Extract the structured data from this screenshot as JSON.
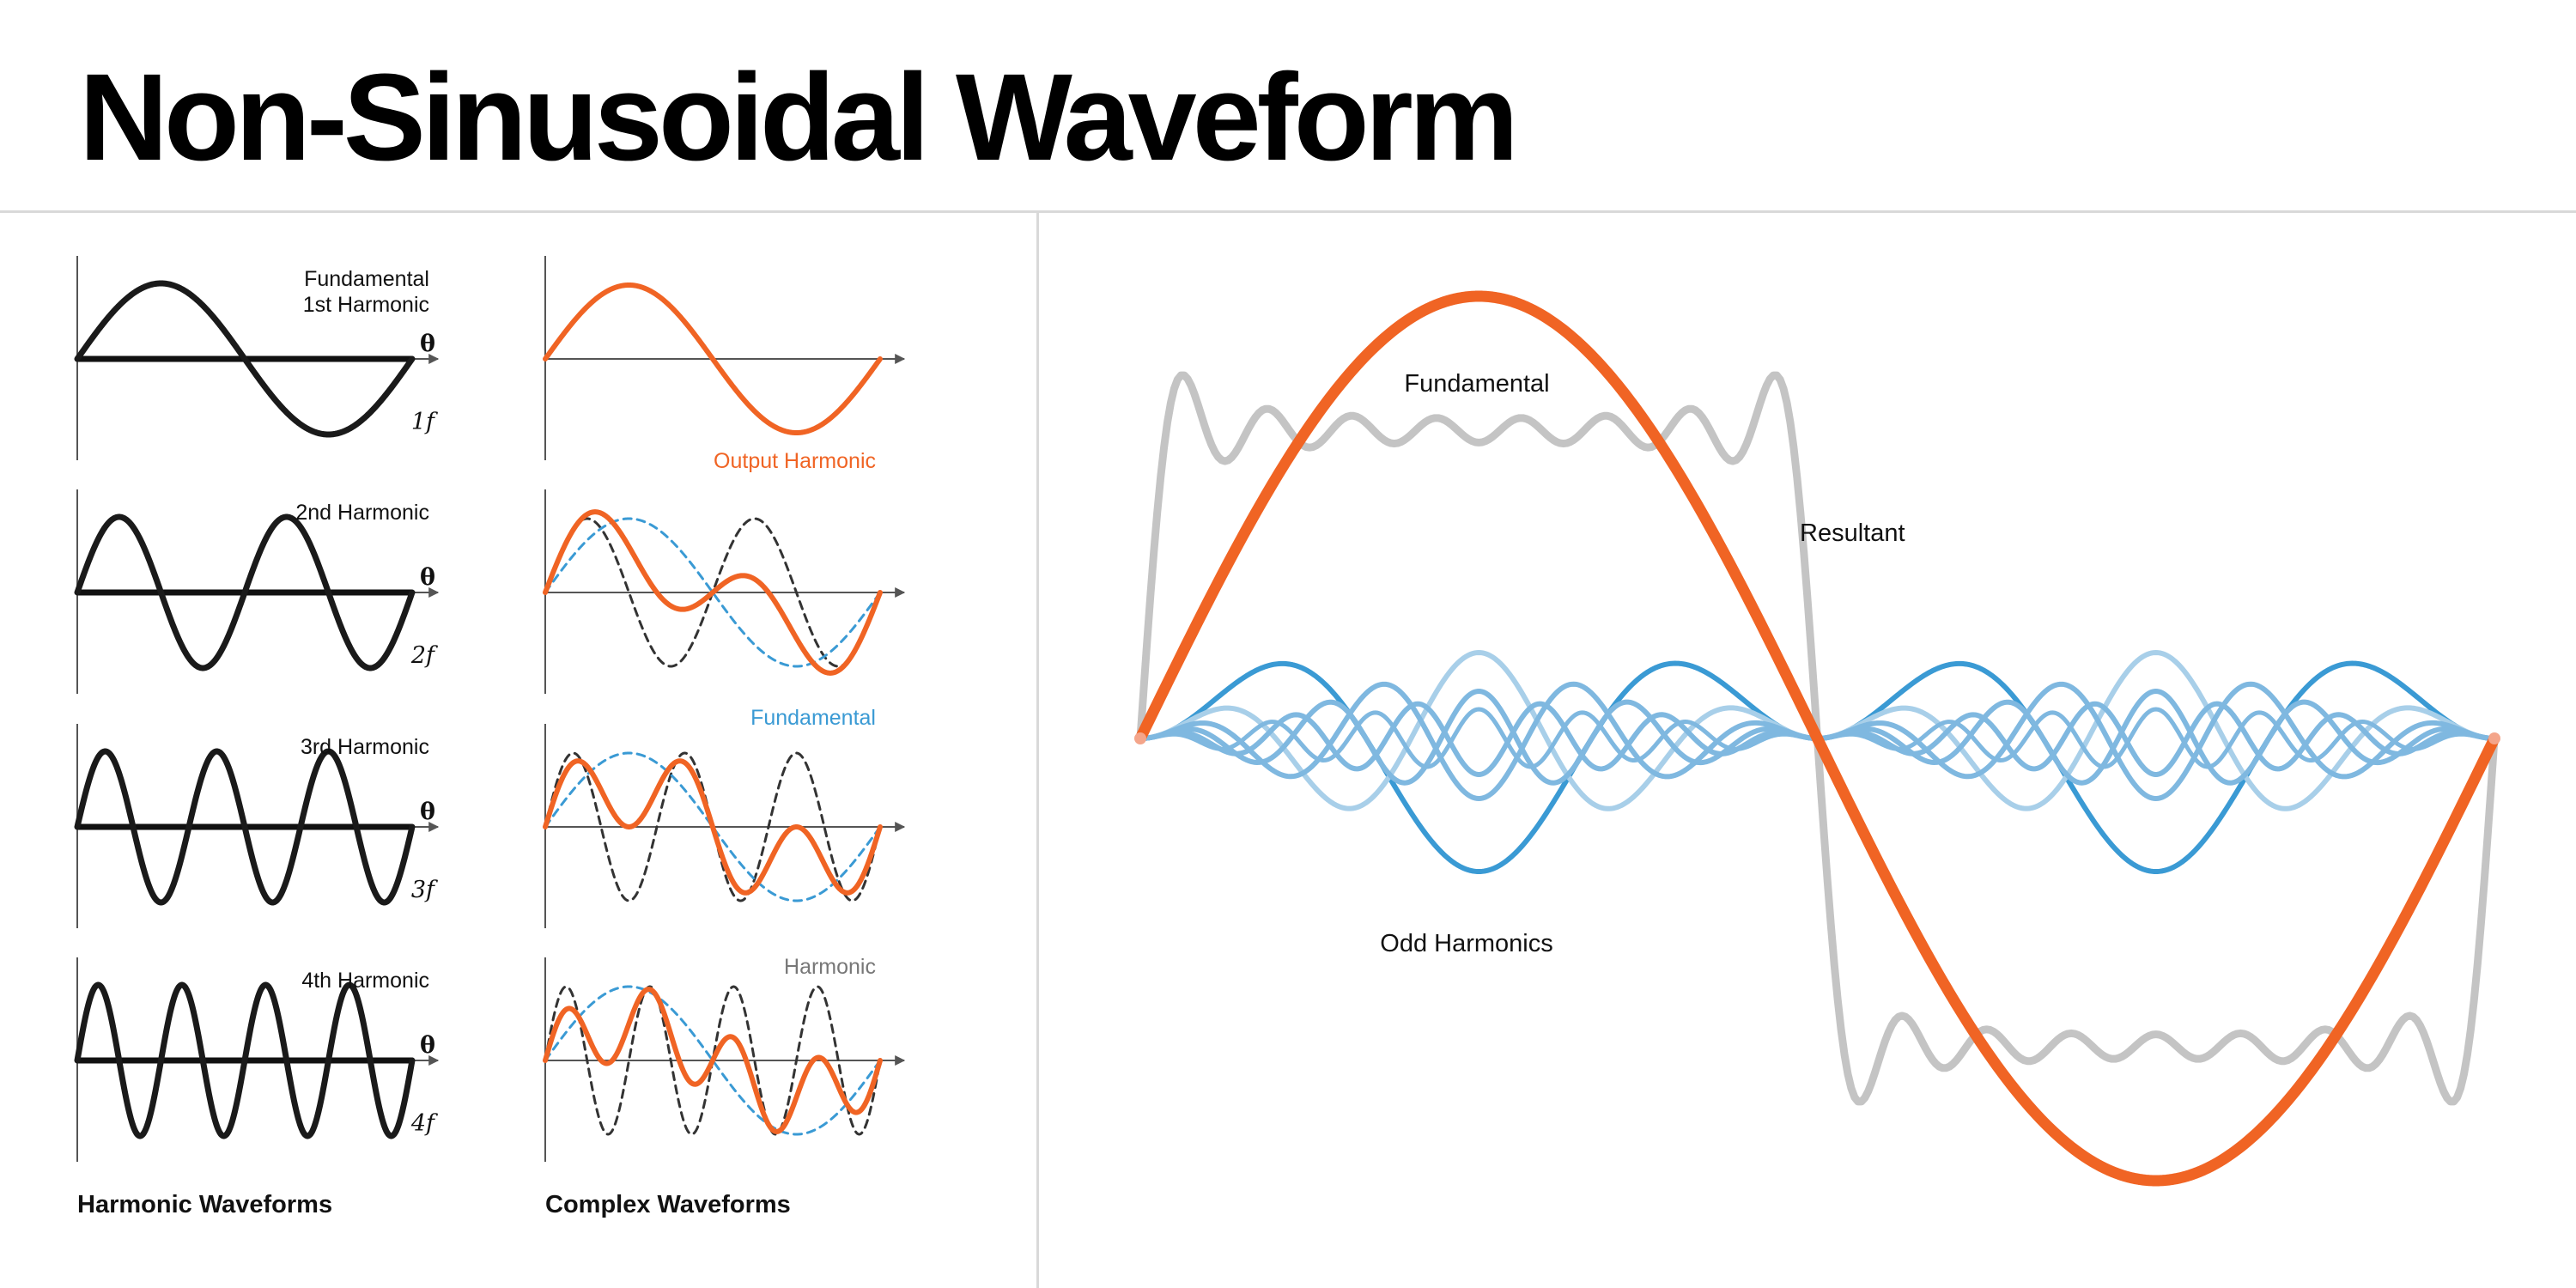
{
  "title": "Non-Sinusoidal Waveform",
  "left_panel": {
    "caption": "Harmonic Waveforms",
    "axis_symbol": "θ",
    "rows": [
      {
        "label_lines": [
          "Fundamental",
          "1st Harmonic"
        ],
        "freq_label": "1f",
        "harmonic": 1
      },
      {
        "label_lines": [
          "2nd Harmonic"
        ],
        "freq_label": "2f",
        "harmonic": 2
      },
      {
        "label_lines": [
          "3rd Harmonic"
        ],
        "freq_label": "3f",
        "harmonic": 3
      },
      {
        "label_lines": [
          "4th Harmonic"
        ],
        "freq_label": "4f",
        "harmonic": 4
      }
    ]
  },
  "middle_panel": {
    "caption": "Complex Waveforms",
    "labels": {
      "output": "Output Harmonic",
      "fundamental": "Fundamental",
      "harmonic": "Harmonic"
    }
  },
  "right_panel": {
    "labels": {
      "fundamental": "Fundamental",
      "resultant": "Resultant",
      "odd_harmonics": "Odd Harmonics"
    }
  },
  "colors": {
    "black": "#1a1a1a",
    "orange": "#f06424",
    "blue": "#3a9ad4",
    "light_blue": "#7fb8e0",
    "pale_blue": "#a8cfe9",
    "gray": "#c4c4c4",
    "axis": "#555555"
  }
}
